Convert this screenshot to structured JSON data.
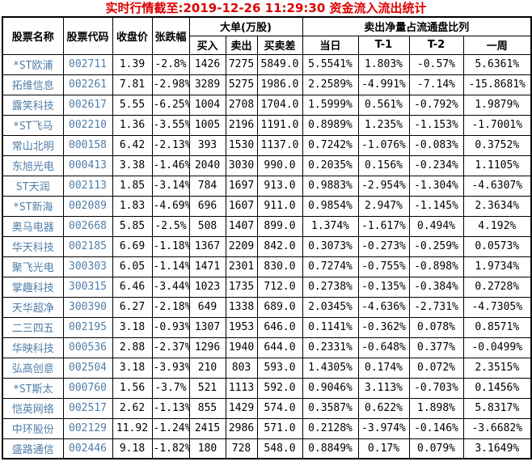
{
  "title": "实时行情截至:2019-12-26 11:29:30 资金流入流出统计",
  "colors": {
    "title_red": "#dd0000",
    "stock_blue": "#4f7da8",
    "text_black": "#000000",
    "border_black": "#000000",
    "background": "#ffffff"
  },
  "table": {
    "group_headers": {
      "big_order": "大单(万股)",
      "net_sell_ratio": "卖出净量占流通盘比列"
    },
    "headers": {
      "name": "股票名称",
      "code": "股票代码",
      "close": "收盘价",
      "change": "张跌幅",
      "buy": "买入",
      "sell": "卖出",
      "diff": "买卖差",
      "today": "当日",
      "t1": "T-1",
      "t2": "T-2",
      "week": "一周"
    },
    "rows": [
      [
        "*ST欧浦",
        "002711",
        "1.39",
        "-2.8%",
        "1426",
        "7275",
        "5849.0",
        "5.5541%",
        "1.803%",
        "-0.57%",
        "5.6361%"
      ],
      [
        "拓维信息",
        "002261",
        "7.81",
        "-2.98%",
        "3289",
        "5275",
        "1986.0",
        "2.2589%",
        "-4.991%",
        "-7.14%",
        "-15.8681%"
      ],
      [
        "露笑科技",
        "002617",
        "5.55",
        "-6.25%",
        "1004",
        "2708",
        "1704.0",
        "1.5999%",
        "0.561%",
        "-0.792%",
        "1.9879%"
      ],
      [
        "*ST飞马",
        "002210",
        "1.36",
        "-3.55%",
        "1005",
        "2196",
        "1191.0",
        "0.8989%",
        "1.235%",
        "-1.153%",
        "-1.7001%"
      ],
      [
        "常山北明",
        "000158",
        "6.42",
        "-2.13%",
        "393",
        "1530",
        "1137.0",
        "0.7242%",
        "-1.076%",
        "-0.083%",
        "0.3752%"
      ],
      [
        "东旭光电",
        "000413",
        "3.38",
        "-1.46%",
        "2040",
        "3030",
        "990.0",
        "0.2035%",
        "0.156%",
        "-0.234%",
        "1.1105%"
      ],
      [
        "ST天润",
        "002113",
        "1.85",
        "-3.14%",
        "784",
        "1697",
        "913.0",
        "0.9883%",
        "-2.954%",
        "-1.304%",
        "-4.6307%"
      ],
      [
        "*ST新海",
        "002089",
        "1.83",
        "-4.69%",
        "696",
        "1607",
        "911.0",
        "0.9854%",
        "2.947%",
        "-1.145%",
        "2.3634%"
      ],
      [
        "奥马电器",
        "002668",
        "5.85",
        "-2.5%",
        "508",
        "1407",
        "899.0",
        "1.374%",
        "-1.617%",
        "0.494%",
        "4.192%"
      ],
      [
        "华天科技",
        "002185",
        "6.69",
        "-1.18%",
        "1367",
        "2209",
        "842.0",
        "0.3073%",
        "-0.273%",
        "-0.259%",
        "0.0573%"
      ],
      [
        "聚飞光电",
        "300303",
        "6.05",
        "-1.14%",
        "1471",
        "2301",
        "830.0",
        "0.7274%",
        "-0.755%",
        "-0.898%",
        "1.9734%"
      ],
      [
        "掌趣科技",
        "300315",
        "6.46",
        "-3.44%",
        "1023",
        "1735",
        "712.0",
        "0.2738%",
        "-0.135%",
        "-0.384%",
        "0.2728%"
      ],
      [
        "天华超净",
        "300390",
        "6.27",
        "-2.18%",
        "649",
        "1338",
        "689.0",
        "2.0345%",
        "-4.636%",
        "-2.731%",
        "-4.7305%"
      ],
      [
        "二三四五",
        "002195",
        "3.18",
        "-0.93%",
        "1307",
        "1953",
        "646.0",
        "0.1141%",
        "-0.362%",
        "0.078%",
        "0.8571%"
      ],
      [
        "华映科技",
        "000536",
        "2.88",
        "-2.37%",
        "1296",
        "1940",
        "644.0",
        "0.2331%",
        "-0.648%",
        "0.377%",
        "-0.0499%"
      ],
      [
        "弘高创意",
        "002504",
        "3.18",
        "-3.93%",
        "210",
        "803",
        "593.0",
        "1.4305%",
        "0.174%",
        "0.072%",
        "2.3515%"
      ],
      [
        "*ST斯太",
        "000760",
        "1.56",
        "-3.7%",
        "521",
        "1113",
        "592.0",
        "0.9046%",
        "3.113%",
        "-0.703%",
        "0.1456%"
      ],
      [
        "恺英网络",
        "002517",
        "2.62",
        "-1.13%",
        "855",
        "1429",
        "574.0",
        "0.3587%",
        "0.622%",
        "1.898%",
        "5.8317%"
      ],
      [
        "中环股份",
        "002129",
        "11.92",
        "-1.24%",
        "2415",
        "2986",
        "571.0",
        "0.2128%",
        "-3.974%",
        "-0.146%",
        "-3.6682%"
      ],
      [
        "盛路通信",
        "002446",
        "9.18",
        "-1.82%",
        "180",
        "728",
        "548.0",
        "0.8849%",
        "0.17%",
        "0.079%",
        "3.1649%"
      ]
    ]
  }
}
